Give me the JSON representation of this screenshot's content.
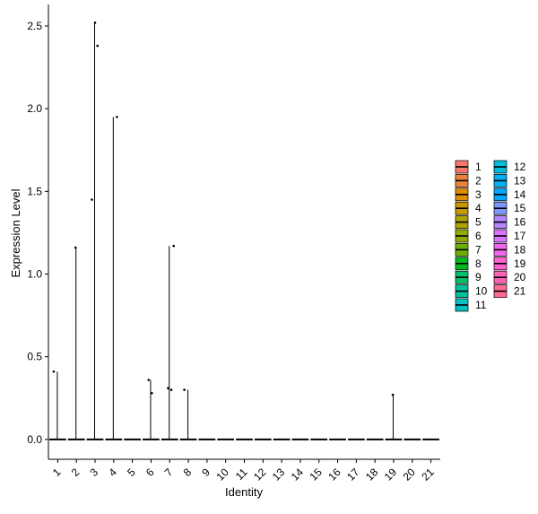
{
  "chart_data": {
    "type": "violin",
    "xlabel": "Identity",
    "ylabel": "Expression Level",
    "categories": [
      "1",
      "2",
      "3",
      "4",
      "5",
      "6",
      "7",
      "8",
      "9",
      "10",
      "11",
      "12",
      "13",
      "14",
      "15",
      "16",
      "17",
      "18",
      "19",
      "20",
      "21"
    ],
    "ylim": [
      -0.12,
      2.63
    ],
    "yticks": [
      0.0,
      0.5,
      1.0,
      1.5,
      2.0,
      2.5
    ],
    "ytick_labels": [
      "0.0",
      "0.5",
      "1.0",
      "1.5",
      "2.0",
      "2.5"
    ],
    "grid": false,
    "legend_position": "right",
    "colors": [
      "#F8766D",
      "#EC8239",
      "#DB8E00",
      "#C79800",
      "#AFA100",
      "#93AA00",
      "#6BB100",
      "#00B81F",
      "#00BE6C",
      "#00C19C",
      "#00C0C2",
      "#00BBDB",
      "#00B2F3",
      "#00A6FF",
      "#7F96FF",
      "#B385FF",
      "#D874FD",
      "#EF67EB",
      "#FD61D3",
      "#FF63B6",
      "#FF6B94"
    ],
    "spike_max": [
      0.41,
      1.16,
      2.52,
      1.95,
      0,
      0.36,
      1.17,
      0.3,
      0,
      0,
      0,
      0,
      0,
      0,
      0,
      0,
      0,
      0,
      0.27,
      0,
      0
    ],
    "points": [
      {
        "group": "1",
        "y": 0.41
      },
      {
        "group": "2",
        "y": 1.16
      },
      {
        "group": "3",
        "y": 2.38
      },
      {
        "group": "3",
        "y": 1.45
      },
      {
        "group": "3",
        "y": 2.52
      },
      {
        "group": "4",
        "y": 1.95
      },
      {
        "group": "6",
        "y": 0.36
      },
      {
        "group": "6",
        "y": 0.28
      },
      {
        "group": "7",
        "y": 1.17
      },
      {
        "group": "7",
        "y": 0.31
      },
      {
        "group": "7",
        "y": 0.3
      },
      {
        "group": "8",
        "y": 0.3
      },
      {
        "group": "19",
        "y": 0.27
      }
    ]
  }
}
